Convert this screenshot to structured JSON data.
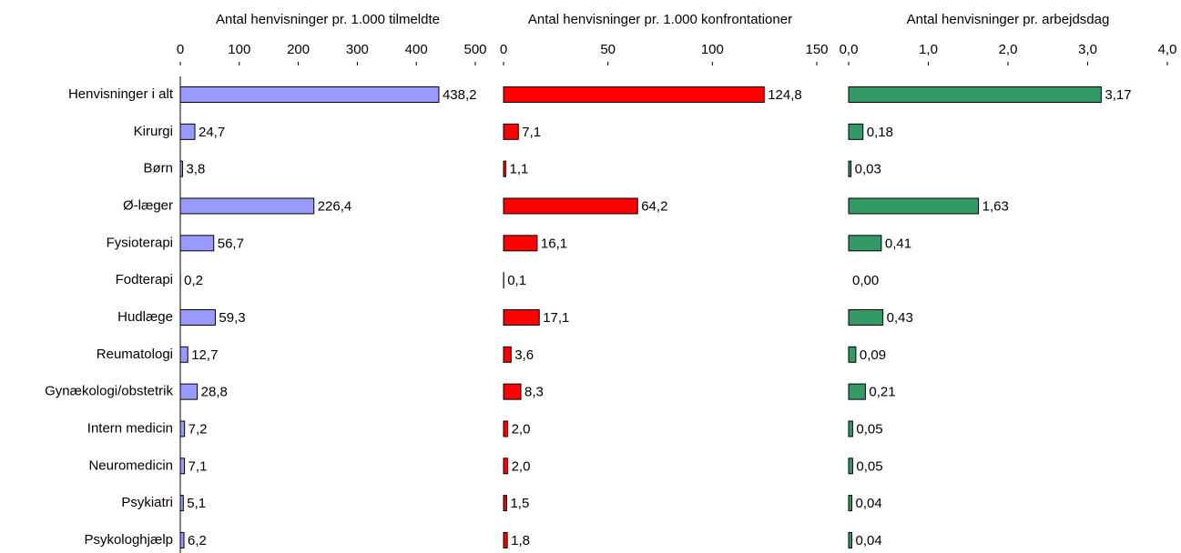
{
  "chart_data": [
    {
      "type": "hbar",
      "title": "Antal henvisninger pr. 1.000 tilmeldte",
      "categories": [
        "Henvisninger i alt",
        "Kirurgi",
        "Børn",
        "Ø-læger",
        "Fysioterapi",
        "Fodterapi",
        "Hudlæge",
        "Reumatologi",
        "Gynækologi/obstetrik",
        "Intern medicin",
        "Neuromedicin",
        "Psykiatri",
        "Psykologhjælp"
      ],
      "values": [
        438.2,
        24.7,
        3.8,
        226.4,
        56.7,
        0.2,
        59.3,
        12.7,
        28.8,
        7.2,
        7.1,
        5.1,
        6.2
      ],
      "value_labels": [
        "438,2",
        "24,7",
        "3,8",
        "226,4",
        "56,7",
        "0,2",
        "59,3",
        "12,7",
        "28,8",
        "7,2",
        "7,1",
        "5,1",
        "6,2"
      ],
      "color": "#9999ff",
      "xlim": [
        0,
        500
      ],
      "xticks": [
        0,
        100,
        200,
        300,
        400,
        500
      ]
    },
    {
      "type": "hbar",
      "title": "Antal henvisninger pr. 1.000 konfrontationer",
      "values": [
        124.8,
        7.1,
        1.1,
        64.2,
        16.1,
        0.1,
        17.1,
        3.6,
        8.3,
        2.0,
        2.0,
        1.5,
        1.8
      ],
      "value_labels": [
        "124,8",
        "7,1",
        "1,1",
        "64,2",
        "16,1",
        "0,1",
        "17,1",
        "3,6",
        "8,3",
        "2,0",
        "2,0",
        "1,5",
        "1,8"
      ],
      "color": "#ff0000",
      "xlim": [
        0,
        150
      ],
      "xticks": [
        0,
        50,
        100,
        150
      ]
    },
    {
      "type": "hbar",
      "title": "Antal henvisninger pr. arbejdsdag",
      "values": [
        3.17,
        0.18,
        0.03,
        1.63,
        0.41,
        0.0,
        0.43,
        0.09,
        0.21,
        0.05,
        0.05,
        0.04,
        0.04
      ],
      "value_labels": [
        "3,17",
        "0,18",
        "0,03",
        "1,63",
        "0,41",
        "0,00",
        "0,43",
        "0,09",
        "0,21",
        "0,05",
        "0,05",
        "0,04",
        "0,04"
      ],
      "color": "#339966",
      "xlim": [
        0,
        4
      ],
      "xticks": [
        {
          "value": 0,
          "label": "0,0"
        },
        {
          "value": 1,
          "label": "1,0"
        },
        {
          "value": 2,
          "label": "2,0"
        },
        {
          "value": 3,
          "label": "3,0"
        },
        {
          "value": 4,
          "label": "4,0"
        }
      ]
    }
  ]
}
